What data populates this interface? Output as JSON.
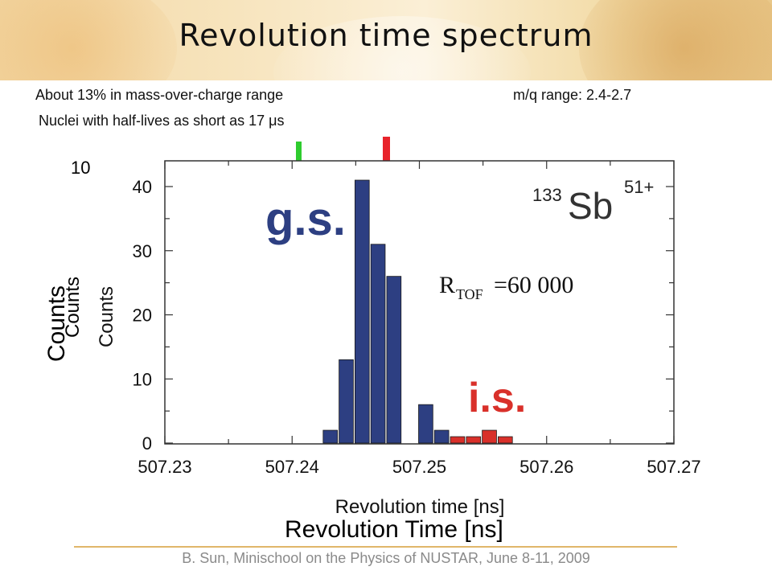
{
  "slide": {
    "title": "Revolution time spectrum",
    "info_left_1": "About 13% in mass-over-charge range",
    "info_right_1": "m/q range: 2.4-2.7",
    "info_left_2": "Nuclei with half-lives as short as 17 μs",
    "footer": "B. Sun, Minischool on the Physics of NUSTAR, June 8-11, 2009",
    "overlay_counts_label": "Counts",
    "overlay_xlabel": "Revolution Time [ns]",
    "overlay_tick": "10"
  },
  "colors": {
    "gs": "#2d3f82",
    "is": "#d9302a",
    "marker_green": "#2ecc2e",
    "marker_red": "#e8232b"
  },
  "chart_data": {
    "type": "bar",
    "xlabel": "Revolution time [ns]",
    "ylabel": "Counts",
    "xlim": [
      507.23,
      507.27
    ],
    "ylim": [
      0,
      44
    ],
    "xticks": [
      "507.23",
      "507.24",
      "507.25",
      "507.26",
      "507.27"
    ],
    "yticks": [
      "0",
      "10",
      "20",
      "30",
      "40"
    ],
    "bin_width_ns": 0.00125,
    "series": [
      {
        "name": "g.s.",
        "x": [
          507.243,
          507.24425,
          507.2455,
          507.24675,
          507.248,
          507.24925,
          507.2505,
          507.25175
        ],
        "values": [
          2,
          13,
          41,
          31,
          26,
          0,
          6,
          2
        ]
      },
      {
        "name": "i.s.",
        "x": [
          507.253,
          507.25425,
          507.2555,
          507.25675
        ],
        "values": [
          1,
          1,
          2,
          1
        ]
      }
    ],
    "annotations": {
      "gs_label": "g.s.",
      "is_label": "i.s.",
      "isotope_mass": "133",
      "isotope_symbol": "Sb",
      "isotope_charge": "51+",
      "resolution_R": "R",
      "resolution_sub": "TOF",
      "resolution_val": "=60 000"
    }
  }
}
